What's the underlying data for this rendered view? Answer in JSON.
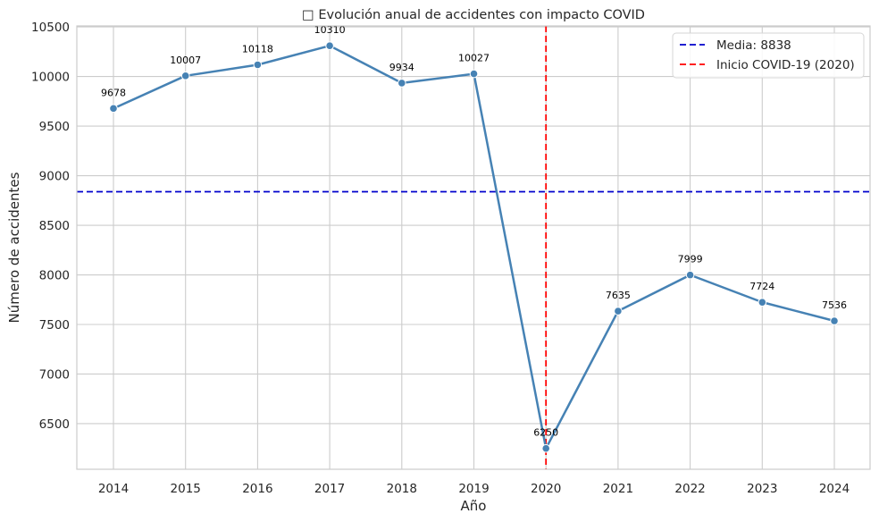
{
  "chart_data": {
    "type": "line",
    "title": "□ Evolución anual de accidentes con impacto COVID",
    "xlabel": "Año",
    "ylabel": "Número de accidentes",
    "x": [
      "2014",
      "2015",
      "2016",
      "2017",
      "2018",
      "2019",
      "2020",
      "2021",
      "2022",
      "2023",
      "2024"
    ],
    "series": [
      {
        "values": [
          9678,
          10007,
          10118,
          10310,
          9934,
          10027,
          6250,
          7635,
          7999,
          7724,
          7536
        ],
        "color": "#4682b4"
      }
    ],
    "data_labels": [
      "9678",
      "10007",
      "10118",
      "10310",
      "9934",
      "10027",
      "6250",
      "7635",
      "7999",
      "7724",
      "7536"
    ],
    "ylim": [
      6040,
      10510
    ],
    "yticks": [
      6500,
      7000,
      7500,
      8000,
      8500,
      9000,
      9500,
      10000,
      10500
    ],
    "grid": true,
    "reference_lines": [
      {
        "orientation": "horizontal",
        "value": 8838,
        "label": "Media: 8838",
        "color": "#0000cc",
        "style": "dashed"
      },
      {
        "orientation": "vertical",
        "value": "2020",
        "label": "Inicio COVID-19 (2020)",
        "color": "#ff0000",
        "style": "dashed"
      }
    ],
    "legend_position": "top-right"
  }
}
